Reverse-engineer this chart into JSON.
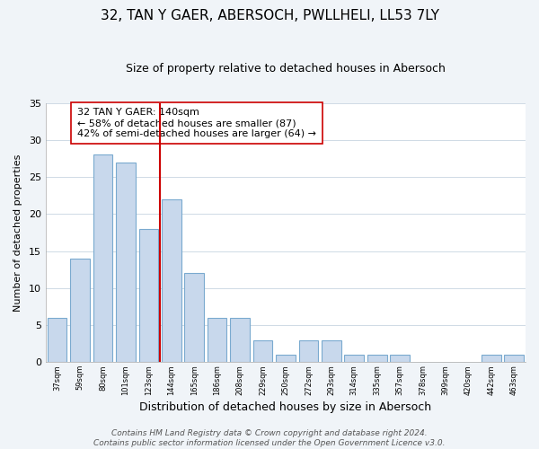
{
  "title": "32, TAN Y GAER, ABERSOCH, PWLLHELI, LL53 7LY",
  "subtitle": "Size of property relative to detached houses in Abersoch",
  "xlabel": "Distribution of detached houses by size in Abersoch",
  "ylabel": "Number of detached properties",
  "bar_values": [
    6,
    14,
    28,
    27,
    18,
    22,
    12,
    6,
    6,
    3,
    1,
    3,
    3,
    1,
    1,
    1,
    0,
    0,
    0,
    1,
    1
  ],
  "x_tick_labels": [
    "37sqm",
    "59sqm",
    "80sqm",
    "101sqm",
    "123sqm",
    "144sqm",
    "165sqm",
    "186sqm",
    "208sqm",
    "229sqm",
    "250sqm",
    "272sqm",
    "293sqm",
    "314sqm",
    "335sqm",
    "357sqm",
    "378sqm",
    "399sqm",
    "420sqm",
    "442sqm",
    "463sqm"
  ],
  "bar_color": "#c8d8ec",
  "bar_edgecolor": "#7aaacf",
  "vline_index": 5,
  "vline_color": "#cc0000",
  "annotation_text": "32 TAN Y GAER: 140sqm\n← 58% of detached houses are smaller (87)\n42% of semi-detached houses are larger (64) →",
  "annotation_box_edgecolor": "#cc0000",
  "annotation_box_facecolor": "#ffffff",
  "ylim": [
    0,
    35
  ],
  "yticks": [
    0,
    5,
    10,
    15,
    20,
    25,
    30,
    35
  ],
  "footer_line1": "Contains HM Land Registry data © Crown copyright and database right 2024.",
  "footer_line2": "Contains public sector information licensed under the Open Government Licence v3.0.",
  "background_color": "#f0f4f8",
  "plot_background_color": "#ffffff",
  "title_fontsize": 11,
  "subtitle_fontsize": 9,
  "annotation_fontsize": 8,
  "footer_fontsize": 6.5,
  "xlabel_fontsize": 9,
  "ylabel_fontsize": 8
}
